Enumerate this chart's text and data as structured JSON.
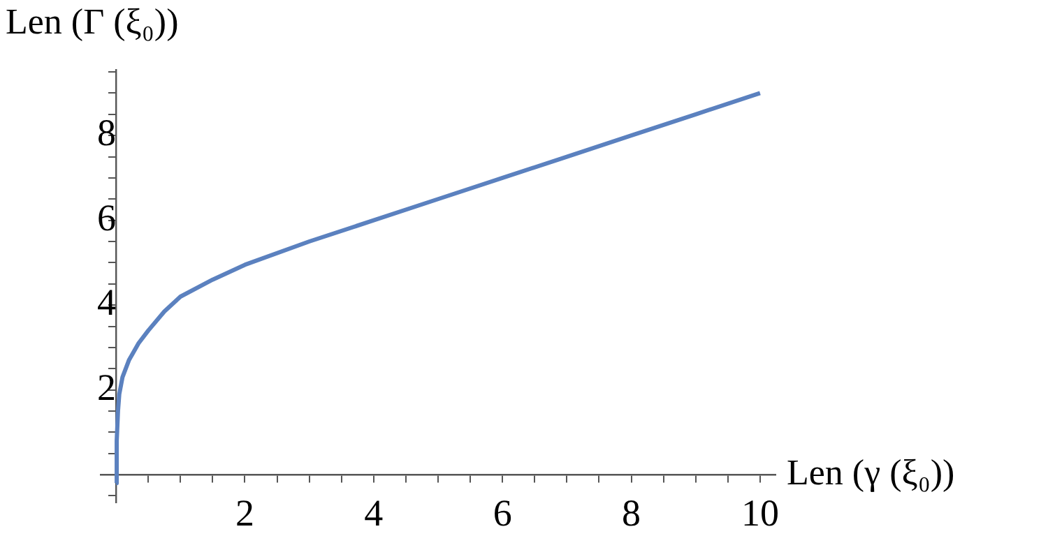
{
  "chart_data": {
    "type": "line",
    "xlabel": "Len (γ (ξ₀))",
    "ylabel": "Len (Γ (ξ₀))",
    "series": [
      {
        "color": "#5b81bf",
        "x": [
          0,
          0.01,
          0.03,
          0.05,
          0.1,
          0.2,
          0.35,
          0.5,
          0.75,
          1,
          1.5,
          2,
          3,
          4,
          5,
          6,
          7,
          8,
          9,
          10
        ],
        "values": [
          -0.2,
          0.8,
          1.5,
          1.9,
          2.3,
          2.7,
          3.1,
          3.4,
          3.85,
          4.2,
          4.6,
          4.95,
          5.5,
          6,
          6.5,
          7,
          7.5,
          8,
          8.5,
          9
        ]
      }
    ],
    "xlim": [
      -0.24,
      10.24
    ],
    "ylim": [
      -0.65,
      9.55
    ],
    "xticks": [
      {
        "value": 0.5,
        "label": null
      },
      {
        "value": 1,
        "label": null
      },
      {
        "value": 1.5,
        "label": null
      },
      2,
      {
        "value": 2.5,
        "label": null
      },
      {
        "value": 3,
        "label": null
      },
      {
        "value": 3.5,
        "label": null
      },
      4,
      {
        "value": 4.5,
        "label": null
      },
      {
        "value": 5,
        "label": null
      },
      {
        "value": 5.5,
        "label": null
      },
      6,
      {
        "value": 6.5,
        "label": null
      },
      {
        "value": 7,
        "label": null
      },
      {
        "value": 7.5,
        "label": null
      },
      8,
      {
        "value": 8.5,
        "label": null
      },
      {
        "value": 9,
        "label": null
      },
      {
        "value": 9.5,
        "label": null
      },
      10
    ],
    "yticks": [
      {
        "value": -0.5,
        "label": null
      },
      {
        "value": 0.5,
        "label": null
      },
      {
        "value": 1,
        "label": null
      },
      {
        "value": 1.5,
        "label": null
      },
      2,
      {
        "value": 2.5,
        "label": null
      },
      {
        "value": 3,
        "label": null
      },
      {
        "value": 3.5,
        "label": null
      },
      4,
      {
        "value": 4.5,
        "label": null
      },
      {
        "value": 5,
        "label": null
      },
      {
        "value": 5.5,
        "label": null
      },
      6,
      {
        "value": 6.5,
        "label": null
      },
      {
        "value": 7,
        "label": null
      },
      {
        "value": 7.5,
        "label": null
      },
      8,
      {
        "value": 8.5,
        "label": null
      },
      {
        "value": 9,
        "label": null
      },
      {
        "value": 9.5,
        "label": null
      }
    ],
    "grid": false,
    "legend": false,
    "marker": "none",
    "line_style": "solid"
  }
}
